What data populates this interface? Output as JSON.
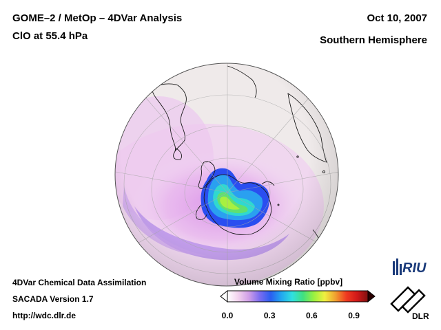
{
  "header": {
    "title": "GOME–2 / MetOp – 4DVar Analysis",
    "species": "ClO at 55.4 hPa",
    "date": "Oct 10, 2007",
    "hemisphere": "Southern Hemisphere"
  },
  "footer": {
    "system": "4DVar Chemical Data Assimilation",
    "version": "SACADA Version 1.7",
    "url": "http://wdc.dlr.de"
  },
  "colorbar": {
    "title": "Volume Mixing Ratio [ppbv]",
    "range": [
      0.0,
      1.0
    ],
    "ticks": [
      {
        "value": 0.0,
        "label": "0.0"
      },
      {
        "value": 0.3,
        "label": "0.3"
      },
      {
        "value": 0.6,
        "label": "0.6"
      },
      {
        "value": 0.9,
        "label": "0.9"
      }
    ],
    "colors": [
      "#ffffff",
      "#f2d2ee",
      "#cf9ee8",
      "#7a6cf0",
      "#2a5ef0",
      "#22a8f0",
      "#30e0e0",
      "#40e080",
      "#9af040",
      "#f0f040",
      "#f0a030",
      "#f03a20",
      "#d01818",
      "#801010"
    ]
  },
  "logos": {
    "riu": "RIU",
    "dlr": "DLR"
  },
  "palette": {
    "globe_bg": "#efeaea",
    "coast": "#1a1a1a",
    "grid": "#a8a8a8"
  }
}
